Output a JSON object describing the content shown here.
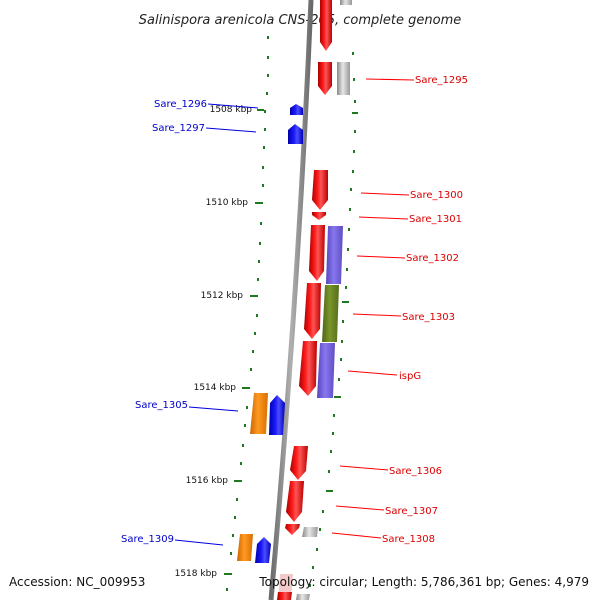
{
  "title": "Salinispora arenicola CNS-205, complete genome",
  "accession": "Accession: NC_009953",
  "topology": "Topology: circular; Length: 5,786,361 bp; Genes: 4,979",
  "colors": {
    "forward": "#ff0000",
    "reverse": "#0000ff",
    "pseudo": "#bbbbbb",
    "orange": "#ff8800",
    "purple": "#7766dd",
    "olive": "#667f22",
    "tick": "#1f7a1f",
    "backbone": "#808080"
  },
  "ticks": [
    "1508 kbp",
    "1510 kbp",
    "1512 kbp",
    "1514 kbp",
    "1516 kbp",
    "1518 kbp"
  ],
  "gene_labels": {
    "sare_1295": "Sare_1295",
    "sare_1296": "Sare_1296",
    "sare_1297": "Sare_1297",
    "sare_1300": "Sare_1300",
    "sare_1301": "Sare_1301",
    "sare_1302": "Sare_1302",
    "sare_1303": "Sare_1303",
    "ispg": "ispG",
    "sare_1305": "Sare_1305",
    "sare_1306": "Sare_1306",
    "sare_1307": "Sare_1307",
    "sare_1308": "Sare_1308",
    "sare_1309": "Sare_1309"
  }
}
